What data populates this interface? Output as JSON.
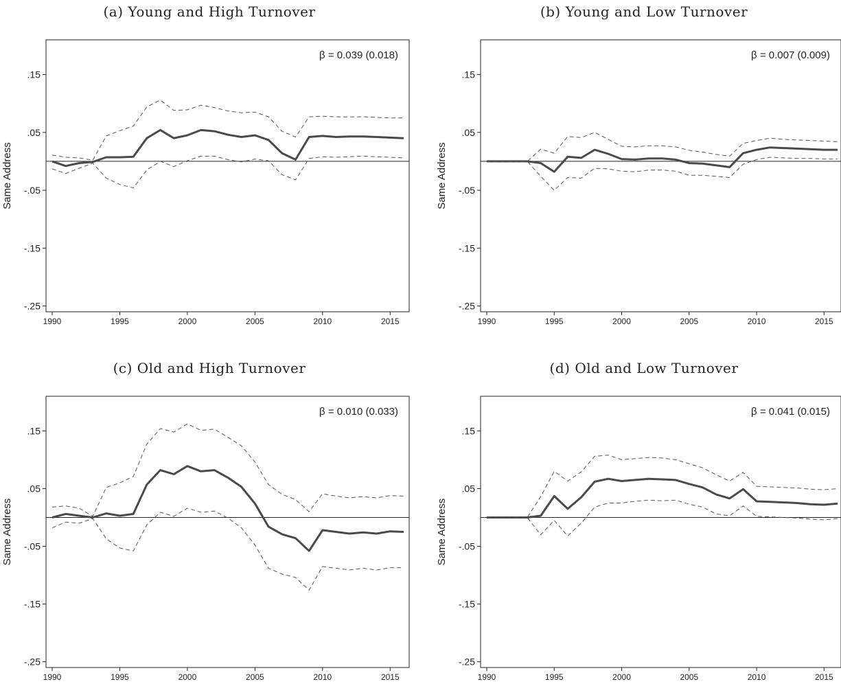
{
  "chart_data": [
    {
      "type": "line",
      "title": "(a) Young and High Turnover",
      "ylabel": "Same Address",
      "annotation": "β = 0.039 (0.018)",
      "yticks": [
        ".15",
        ".05",
        "-.05",
        "-.15",
        "-.25"
      ],
      "ytick_values": [
        0.15,
        0.05,
        -0.05,
        -0.15,
        -0.25
      ],
      "xticks": [
        1990,
        1995,
        2000,
        2005,
        2010,
        2015
      ],
      "xlim": [
        1990,
        2016
      ],
      "ylim": [
        -0.26,
        0.21
      ],
      "x": [
        1990,
        1991,
        1992,
        1993,
        1994,
        1995,
        1996,
        1997,
        1998,
        1999,
        2000,
        2001,
        2002,
        2003,
        2004,
        2005,
        2006,
        2007,
        2008,
        2009,
        2010,
        2011,
        2012,
        2013,
        2014,
        2015,
        2016
      ],
      "series": [
        {
          "role": "estimate",
          "values": [
            0.0,
            -0.008,
            -0.003,
            -0.001,
            0.007,
            0.007,
            0.008,
            0.04,
            0.054,
            0.04,
            0.045,
            0.054,
            0.052,
            0.046,
            0.042,
            0.045,
            0.037,
            0.014,
            0.003,
            0.042,
            0.044,
            0.042,
            0.043,
            0.043,
            0.042,
            0.041,
            0.04
          ]
        },
        {
          "role": "upper_ci",
          "values": [
            0.011,
            0.007,
            0.006,
            0.002,
            0.044,
            0.053,
            0.061,
            0.094,
            0.106,
            0.088,
            0.089,
            0.097,
            0.093,
            0.087,
            0.084,
            0.085,
            0.077,
            0.052,
            0.042,
            0.077,
            0.078,
            0.077,
            0.077,
            0.077,
            0.076,
            0.075,
            0.075
          ]
        },
        {
          "role": "lower_ci",
          "values": [
            -0.013,
            -0.021,
            -0.012,
            -0.003,
            -0.029,
            -0.04,
            -0.046,
            -0.015,
            0.0,
            -0.009,
            0.001,
            0.009,
            0.009,
            0.003,
            -0.001,
            0.004,
            0.001,
            -0.023,
            -0.032,
            0.005,
            0.008,
            0.007,
            0.008,
            0.009,
            0.008,
            0.007,
            0.006
          ]
        }
      ]
    },
    {
      "type": "line",
      "title": "(b) Young and Low Turnover",
      "ylabel": "Same Address",
      "annotation": "β = 0.007 (0.009)",
      "yticks": [
        ".15",
        ".05",
        "-.05",
        "-.15",
        "-.25"
      ],
      "ytick_values": [
        0.15,
        0.05,
        -0.05,
        -0.15,
        -0.25
      ],
      "xticks": [
        1990,
        1995,
        2000,
        2005,
        2010,
        2015
      ],
      "xlim": [
        1990,
        2016
      ],
      "ylim": [
        -0.26,
        0.21
      ],
      "x": [
        1990,
        1991,
        1992,
        1993,
        1994,
        1995,
        1996,
        1997,
        1998,
        1999,
        2000,
        2001,
        2002,
        2003,
        2004,
        2005,
        2006,
        2007,
        2008,
        2009,
        2010,
        2011,
        2012,
        2013,
        2014,
        2015,
        2016
      ],
      "series": [
        {
          "role": "estimate",
          "values": [
            0.0,
            0.0,
            0.0,
            0.0,
            -0.003,
            -0.018,
            0.008,
            0.006,
            0.02,
            0.013,
            0.004,
            0.003,
            0.005,
            0.005,
            0.003,
            -0.003,
            -0.004,
            -0.007,
            -0.01,
            0.014,
            0.02,
            0.024,
            0.023,
            0.022,
            0.021,
            0.02,
            0.02
          ]
        },
        {
          "role": "upper_ci",
          "values": [
            0.0,
            0.0,
            0.0,
            0.0,
            0.021,
            0.014,
            0.043,
            0.041,
            0.05,
            0.038,
            0.026,
            0.025,
            0.027,
            0.027,
            0.025,
            0.019,
            0.016,
            0.012,
            0.009,
            0.031,
            0.036,
            0.04,
            0.038,
            0.037,
            0.036,
            0.035,
            0.034
          ]
        },
        {
          "role": "lower_ci",
          "values": [
            0.0,
            0.0,
            0.0,
            0.0,
            -0.026,
            -0.05,
            -0.028,
            -0.029,
            -0.012,
            -0.013,
            -0.017,
            -0.018,
            -0.015,
            -0.015,
            -0.017,
            -0.024,
            -0.024,
            -0.026,
            -0.028,
            -0.005,
            0.003,
            0.007,
            0.006,
            0.005,
            0.005,
            0.004,
            0.004
          ]
        }
      ]
    },
    {
      "type": "line",
      "title": "(c) Old and High Turnover",
      "ylabel": "Same Address",
      "annotation": "β = 0.010 (0.033)",
      "yticks": [
        ".15",
        ".05",
        "-.05",
        "-.15",
        "-.25"
      ],
      "ytick_values": [
        0.15,
        0.05,
        -0.05,
        -0.15,
        -0.25
      ],
      "xticks": [
        1990,
        1995,
        2000,
        2005,
        2010,
        2015
      ],
      "xlim": [
        1990,
        2016
      ],
      "ylim": [
        -0.26,
        0.21
      ],
      "x": [
        1990,
        1991,
        1992,
        1993,
        1994,
        1995,
        1996,
        1997,
        1998,
        1999,
        2000,
        2001,
        2002,
        2003,
        2004,
        2005,
        2006,
        2007,
        2008,
        2009,
        2010,
        2011,
        2012,
        2013,
        2014,
        2015,
        2016
      ],
      "series": [
        {
          "role": "estimate",
          "values": [
            0.0,
            0.006,
            0.003,
            0.0,
            0.007,
            0.003,
            0.006,
            0.057,
            0.082,
            0.075,
            0.089,
            0.08,
            0.082,
            0.069,
            0.053,
            0.024,
            -0.016,
            -0.029,
            -0.036,
            -0.058,
            -0.022,
            -0.025,
            -0.028,
            -0.026,
            -0.028,
            -0.024,
            -0.025
          ]
        },
        {
          "role": "upper_ci",
          "values": [
            0.018,
            0.02,
            0.016,
            0.002,
            0.052,
            0.06,
            0.071,
            0.127,
            0.154,
            0.148,
            0.162,
            0.151,
            0.153,
            0.139,
            0.124,
            0.096,
            0.057,
            0.04,
            0.031,
            0.01,
            0.041,
            0.037,
            0.034,
            0.036,
            0.034,
            0.038,
            0.037
          ]
        },
        {
          "role": "lower_ci",
          "values": [
            -0.018,
            -0.008,
            -0.01,
            -0.002,
            -0.037,
            -0.053,
            -0.058,
            -0.013,
            0.009,
            0.002,
            0.016,
            0.009,
            0.011,
            -0.001,
            -0.018,
            -0.048,
            -0.088,
            -0.098,
            -0.104,
            -0.126,
            -0.085,
            -0.088,
            -0.091,
            -0.088,
            -0.091,
            -0.087,
            -0.087
          ]
        }
      ]
    },
    {
      "type": "line",
      "title": "(d) Old and Low Turnover",
      "ylabel": "Same Address",
      "annotation": "β = 0.041 (0.015)",
      "yticks": [
        ".15",
        ".05",
        "-.05",
        "-.15",
        "-.25"
      ],
      "ytick_values": [
        0.15,
        0.05,
        -0.05,
        -0.15,
        -0.25
      ],
      "xticks": [
        1990,
        1995,
        2000,
        2005,
        2010,
        2015
      ],
      "xlim": [
        1990,
        2016
      ],
      "ylim": [
        -0.26,
        0.21
      ],
      "x": [
        1990,
        1991,
        1992,
        1993,
        1994,
        1995,
        1996,
        1997,
        1998,
        1999,
        2000,
        2001,
        2002,
        2003,
        2004,
        2005,
        2006,
        2007,
        2008,
        2009,
        2010,
        2011,
        2012,
        2013,
        2014,
        2015,
        2016
      ],
      "series": [
        {
          "role": "estimate",
          "values": [
            0.0,
            0.0,
            0.0,
            0.0,
            0.003,
            0.037,
            0.015,
            0.035,
            0.062,
            0.067,
            0.063,
            0.065,
            0.067,
            0.066,
            0.065,
            0.058,
            0.052,
            0.04,
            0.033,
            0.049,
            0.028,
            0.027,
            0.026,
            0.025,
            0.023,
            0.022,
            0.024
          ]
        },
        {
          "role": "upper_ci",
          "values": [
            0.0,
            0.0,
            0.0,
            0.0,
            0.036,
            0.08,
            0.063,
            0.079,
            0.106,
            0.108,
            0.1,
            0.102,
            0.104,
            0.103,
            0.1,
            0.093,
            0.086,
            0.074,
            0.063,
            0.078,
            0.054,
            0.053,
            0.052,
            0.051,
            0.049,
            0.048,
            0.05
          ]
        },
        {
          "role": "lower_ci",
          "values": [
            0.0,
            0.0,
            0.0,
            0.0,
            -0.03,
            -0.005,
            -0.032,
            -0.01,
            0.018,
            0.025,
            0.025,
            0.028,
            0.03,
            0.029,
            0.03,
            0.023,
            0.018,
            0.006,
            0.003,
            0.02,
            0.002,
            0.001,
            0.0,
            -0.001,
            -0.003,
            -0.004,
            -0.002
          ]
        }
      ]
    }
  ]
}
